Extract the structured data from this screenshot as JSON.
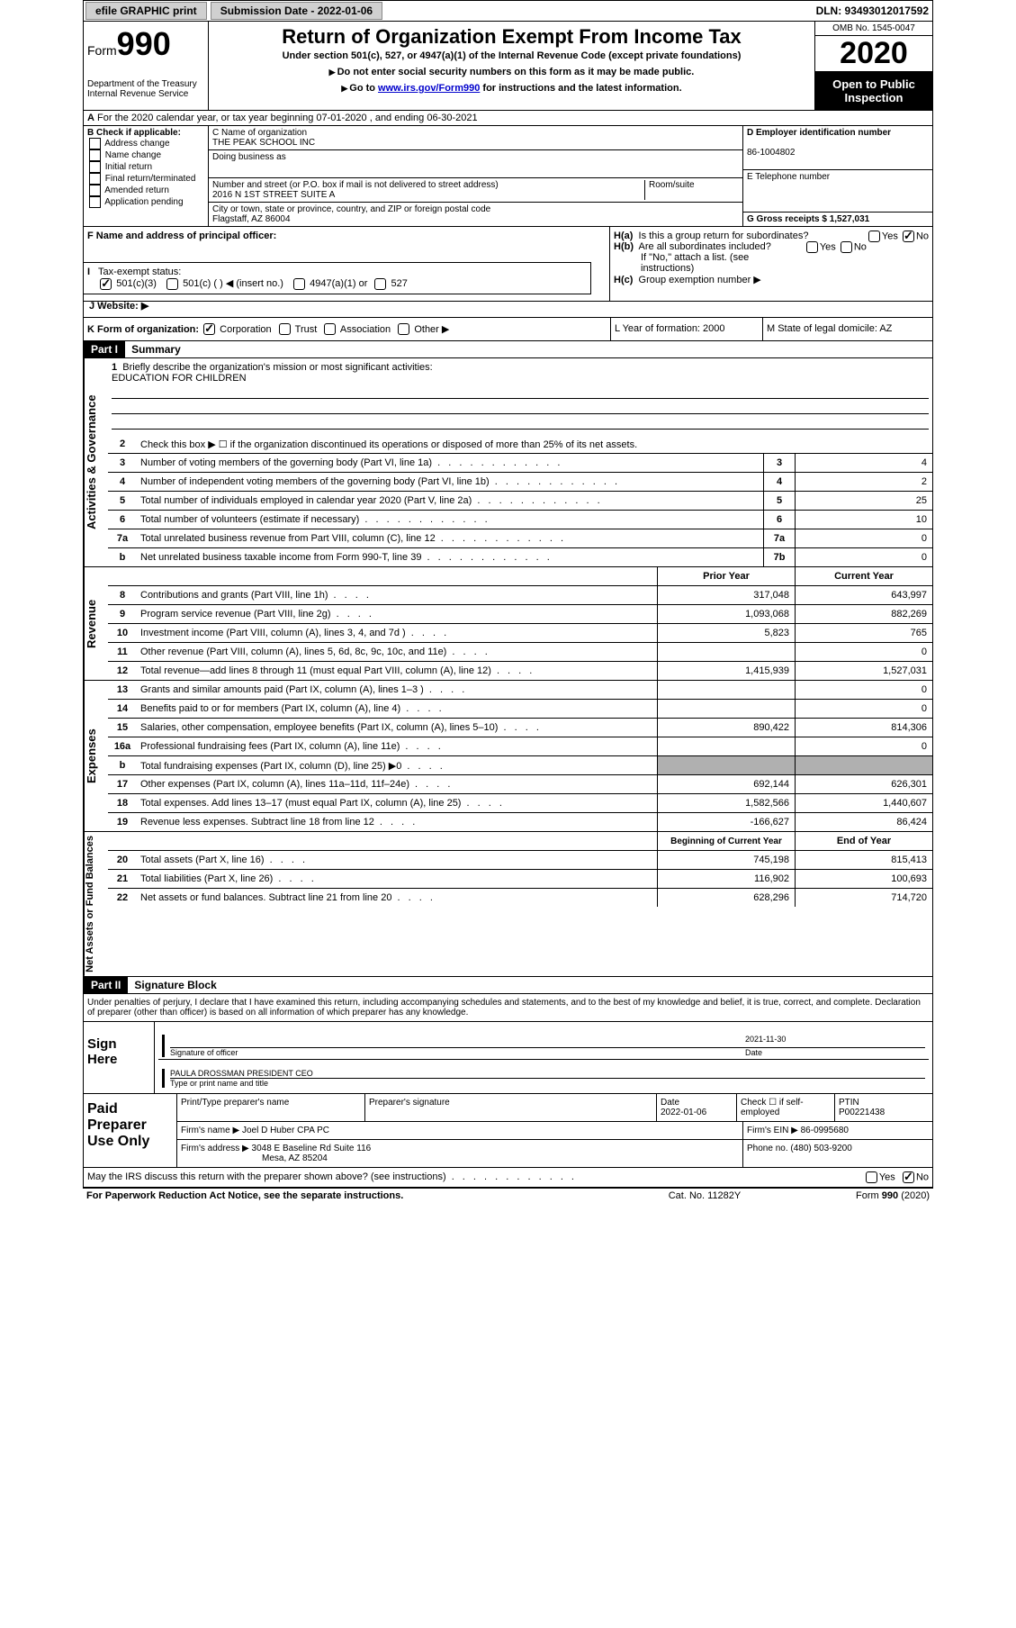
{
  "topbar": {
    "efile_label": "efile GRAPHIC print",
    "submission_label": "Submission Date - 2022-01-06",
    "dln_label": "DLN: 93493012017592"
  },
  "header": {
    "form_label": "Form",
    "form_number": "990",
    "dept": "Department of the Treasury",
    "irs": "Internal Revenue Service",
    "title": "Return of Organization Exempt From Income Tax",
    "subtitle": "Under section 501(c), 527, or 4947(a)(1) of the Internal Revenue Code (except private foundations)",
    "note1": "Do not enter social security numbers on this form as it may be made public.",
    "note2_pre": "Go to ",
    "note2_link": "www.irs.gov/Form990",
    "note2_post": " for instructions and the latest information.",
    "omb": "OMB No. 1545-0047",
    "year": "2020",
    "open_public": "Open to Public Inspection"
  },
  "line_a": "For the 2020 calendar year, or tax year beginning 07-01-2020    , and ending 06-30-2021",
  "section_b": {
    "title": "B Check if applicable:",
    "items": [
      "Address change",
      "Name change",
      "Initial return",
      "Final return/terminated",
      "Amended return",
      "Application pending"
    ]
  },
  "section_c": {
    "name_label": "C Name of organization",
    "name": "THE PEAK SCHOOL INC",
    "dba_label": "Doing business as",
    "street_label": "Number and street (or P.O. box if mail is not delivered to street address)",
    "street": "2016 N 1ST STREET SUITE A",
    "room_label": "Room/suite",
    "city_label": "City or town, state or province, country, and ZIP or foreign postal code",
    "city": "Flagstaff, AZ  86004"
  },
  "section_d": {
    "ein_label": "D Employer identification number",
    "ein": "86-1004802",
    "phone_label": "E Telephone number",
    "gross_label": "G Gross receipts $ 1,527,031"
  },
  "section_f": {
    "label": "F  Name and address of principal officer:"
  },
  "section_h": {
    "ha": "Is this a group return for subordinates?",
    "hb": "Are all subordinates included?",
    "hb_note": "If \"No,\" attach a list. (see instructions)",
    "hc": "Group exemption number ▶",
    "yes": "Yes",
    "no": "No"
  },
  "section_i": {
    "label": "Tax-exempt status:",
    "opts": [
      "501(c)(3)",
      "501(c) (  ) ◀ (insert no.)",
      "4947(a)(1) or",
      "527"
    ]
  },
  "section_j": "J   Website: ▶",
  "section_k": {
    "label": "K Form of organization:",
    "opts": [
      "Corporation",
      "Trust",
      "Association",
      "Other ▶"
    ]
  },
  "section_l": "L Year of formation: 2000",
  "section_m": "M State of legal domicile: AZ",
  "part1": {
    "header": "Part I",
    "title": "Summary",
    "line1_label": "Briefly describe the organization's mission or most significant activities:",
    "line1_text": "EDUCATION FOR CHILDREN",
    "line2": "Check this box ▶ ☐  if the organization discontinued its operations or disposed of more than 25% of its net assets.",
    "rows_gov": [
      {
        "n": "3",
        "desc": "Number of voting members of the governing body (Part VI, line 1a)",
        "box": "3",
        "val": "4"
      },
      {
        "n": "4",
        "desc": "Number of independent voting members of the governing body (Part VI, line 1b)",
        "box": "4",
        "val": "2"
      },
      {
        "n": "5",
        "desc": "Total number of individuals employed in calendar year 2020 (Part V, line 2a)",
        "box": "5",
        "val": "25"
      },
      {
        "n": "6",
        "desc": "Total number of volunteers (estimate if necessary)",
        "box": "6",
        "val": "10"
      },
      {
        "n": "7a",
        "desc": "Total unrelated business revenue from Part VIII, column (C), line 12",
        "box": "7a",
        "val": "0"
      },
      {
        "n": "b",
        "desc": "Net unrelated business taxable income from Form 990-T, line 39",
        "box": "7b",
        "val": "0"
      }
    ],
    "col_prior": "Prior Year",
    "col_current": "Current Year",
    "rows_rev": [
      {
        "n": "8",
        "desc": "Contributions and grants (Part VIII, line 1h)",
        "p": "317,048",
        "c": "643,997"
      },
      {
        "n": "9",
        "desc": "Program service revenue (Part VIII, line 2g)",
        "p": "1,093,068",
        "c": "882,269"
      },
      {
        "n": "10",
        "desc": "Investment income (Part VIII, column (A), lines 3, 4, and 7d )",
        "p": "5,823",
        "c": "765"
      },
      {
        "n": "11",
        "desc": "Other revenue (Part VIII, column (A), lines 5, 6d, 8c, 9c, 10c, and 11e)",
        "p": "",
        "c": "0"
      },
      {
        "n": "12",
        "desc": "Total revenue—add lines 8 through 11 (must equal Part VIII, column (A), line 12)",
        "p": "1,415,939",
        "c": "1,527,031"
      }
    ],
    "rows_exp": [
      {
        "n": "13",
        "desc": "Grants and similar amounts paid (Part IX, column (A), lines 1–3 )",
        "p": "",
        "c": "0"
      },
      {
        "n": "14",
        "desc": "Benefits paid to or for members (Part IX, column (A), line 4)",
        "p": "",
        "c": "0"
      },
      {
        "n": "15",
        "desc": "Salaries, other compensation, employee benefits (Part IX, column (A), lines 5–10)",
        "p": "890,422",
        "c": "814,306"
      },
      {
        "n": "16a",
        "desc": "Professional fundraising fees (Part IX, column (A), line 11e)",
        "p": "",
        "c": "0"
      },
      {
        "n": "b",
        "desc": "Total fundraising expenses (Part IX, column (D), line 25) ▶0",
        "p": "shade",
        "c": "shade"
      },
      {
        "n": "17",
        "desc": "Other expenses (Part IX, column (A), lines 11a–11d, 11f–24e)",
        "p": "692,144",
        "c": "626,301"
      },
      {
        "n": "18",
        "desc": "Total expenses. Add lines 13–17 (must equal Part IX, column (A), line 25)",
        "p": "1,582,566",
        "c": "1,440,607"
      },
      {
        "n": "19",
        "desc": "Revenue less expenses. Subtract line 18 from line 12",
        "p": "-166,627",
        "c": "86,424"
      }
    ],
    "col_begin": "Beginning of Current Year",
    "col_end": "End of Year",
    "rows_net": [
      {
        "n": "20",
        "desc": "Total assets (Part X, line 16)",
        "p": "745,198",
        "c": "815,413"
      },
      {
        "n": "21",
        "desc": "Total liabilities (Part X, line 26)",
        "p": "116,902",
        "c": "100,693"
      },
      {
        "n": "22",
        "desc": "Net assets or fund balances. Subtract line 21 from line 20",
        "p": "628,296",
        "c": "714,720"
      }
    ],
    "sidebars": {
      "gov": "Activities & Governance",
      "rev": "Revenue",
      "exp": "Expenses",
      "net": "Net Assets or Fund Balances"
    }
  },
  "part2": {
    "header": "Part II",
    "title": "Signature Block",
    "declaration": "Under penalties of perjury, I declare that I have examined this return, including accompanying schedules and statements, and to the best of my knowledge and belief, it is true, correct, and complete. Declaration of preparer (other than officer) is based on all information of which preparer has any knowledge.",
    "sign_here": "Sign Here",
    "sig_officer": "Signature of officer",
    "date": "Date",
    "sig_date": "2021-11-30",
    "officer_name": "PAULA DROSSMAN  PRESIDENT CEO",
    "type_name": "Type or print name and title",
    "paid": "Paid Preparer Use Only",
    "print_name": "Print/Type preparer's name",
    "prep_sig": "Preparer's signature",
    "prep_date_label": "Date",
    "prep_date": "2022-01-06",
    "check_self": "Check ☐ if self-employed",
    "ptin_label": "PTIN",
    "ptin": "P00221438",
    "firm_name_label": "Firm's name      ▶",
    "firm_name": "Joel D Huber CPA PC",
    "firm_ein_label": "Firm's EIN ▶",
    "firm_ein": "86-0995680",
    "firm_addr_label": "Firm's address ▶",
    "firm_addr1": "3048 E Baseline Rd Suite 116",
    "firm_addr2": "Mesa, AZ  85204",
    "phone_label": "Phone no.",
    "phone": "(480) 503-9200",
    "discuss": "May the IRS discuss this return with the preparer shown above? (see instructions)",
    "paperwork": "For Paperwork Reduction Act Notice, see the separate instructions.",
    "cat": "Cat. No. 11282Y",
    "form_foot": "Form 990 (2020)"
  }
}
